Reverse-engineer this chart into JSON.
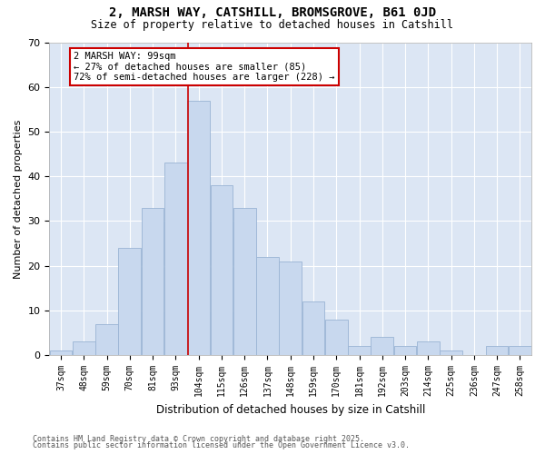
{
  "title1": "2, MARSH WAY, CATSHILL, BROMSGROVE, B61 0JD",
  "title2": "Size of property relative to detached houses in Catshill",
  "xlabel": "Distribution of detached houses by size in Catshill",
  "ylabel": "Number of detached properties",
  "categories": [
    "37sqm",
    "48sqm",
    "59sqm",
    "70sqm",
    "81sqm",
    "93sqm",
    "104sqm",
    "115sqm",
    "126sqm",
    "137sqm",
    "148sqm",
    "159sqm",
    "170sqm",
    "181sqm",
    "192sqm",
    "203sqm",
    "214sqm",
    "225sqm",
    "236sqm",
    "247sqm",
    "258sqm"
  ],
  "values": [
    1,
    3,
    7,
    24,
    33,
    43,
    57,
    38,
    33,
    22,
    21,
    12,
    8,
    2,
    4,
    2,
    3,
    1,
    0,
    2,
    2
  ],
  "bar_color": "#c8d8ee",
  "bar_edge_color": "#9ab4d4",
  "marker_label": "2 MARSH WAY: 99sqm",
  "annotation_line1": "← 27% of detached houses are smaller (85)",
  "annotation_line2": "72% of semi-detached houses are larger (228) →",
  "marker_color": "#cc0000",
  "annotation_box_color": "#ffffff",
  "annotation_box_edge": "#cc0000",
  "background_color": "#dce6f4",
  "ylim": [
    0,
    70
  ],
  "yticks": [
    0,
    10,
    20,
    30,
    40,
    50,
    60,
    70
  ],
  "footnote1": "Contains HM Land Registry data © Crown copyright and database right 2025.",
  "footnote2": "Contains public sector information licensed under the Open Government Licence v3.0."
}
